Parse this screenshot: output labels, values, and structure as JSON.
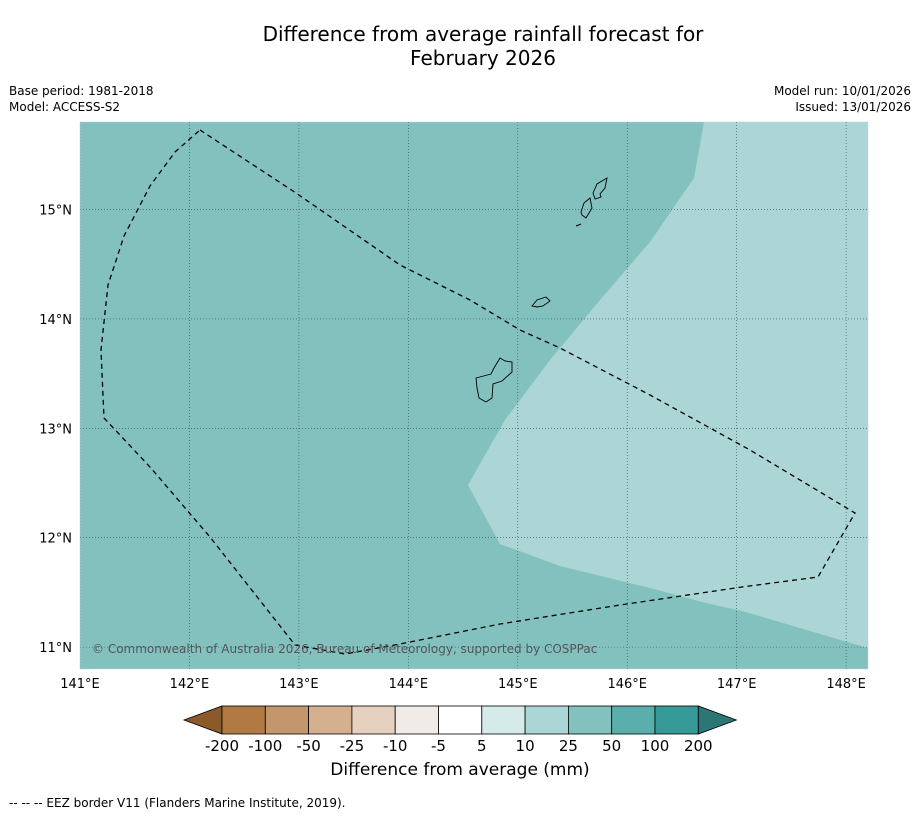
{
  "title_line1": "Difference from average rainfall forecast for",
  "title_line2": "February 2026",
  "base_period": "Base period: 1981-2018",
  "model": "Model: ACCESS-S2",
  "model_run": "Model run: 10/01/2026",
  "issued": "Issued: 13/01/2026",
  "copyright": "© Commonwealth of Australia 2026, Bureau of Meteorology, supported by COSPPac",
  "map": {
    "lon_ticks": [
      "141°E",
      "142°E",
      "143°E",
      "144°E",
      "145°E",
      "146°E",
      "147°E",
      "148°E"
    ],
    "lat_ticks": [
      "15°N",
      "14°N",
      "13°N",
      "12°N",
      "11°N"
    ],
    "lon_range": [
      141.0,
      148.2
    ],
    "lat_range": [
      10.8,
      15.8
    ],
    "base_category": "25 to 50 mm",
    "anomaly_region_category": "10 to 25 mm"
  },
  "colorbar": {
    "labels": [
      "-200",
      "-100",
      "-50",
      "-25",
      "-10",
      "-5",
      "5",
      "10",
      "25",
      "50",
      "100",
      "200"
    ],
    "colors": [
      "#8b5a2b",
      "#b07a42",
      "#c4966c",
      "#d4b08f",
      "#e6d0bf",
      "#f0ebe6",
      "#ffffff",
      "#d4ebe9",
      "#acd6d5",
      "#83c1bf",
      "#5aaeac",
      "#369b98",
      "#2a7776"
    ],
    "title": "Difference from average (mm)"
  },
  "footnote": "--  --  -- EEZ border V11 (Flanders Marine Institute, 2019)."
}
